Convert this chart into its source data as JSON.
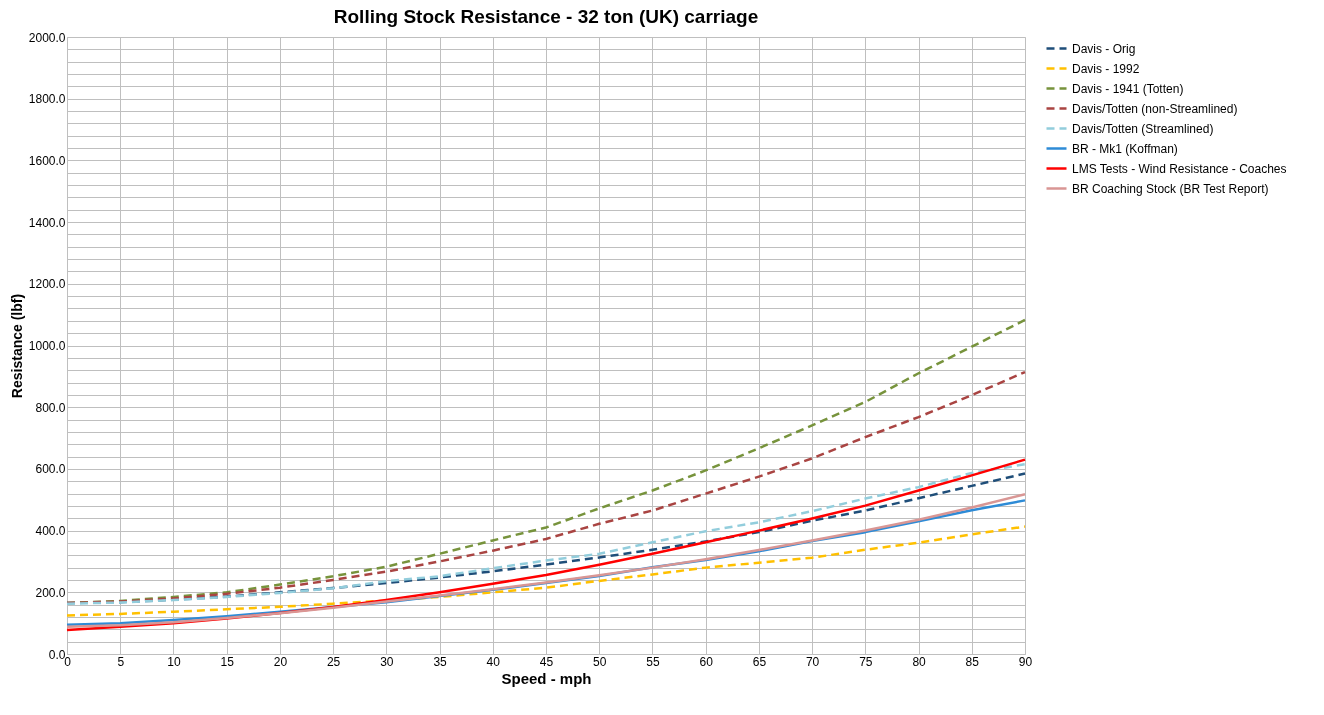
{
  "chart_data": {
    "type": "line",
    "title": "Rolling Stock Resistance - 32 ton (UK) carriage",
    "xlabel": "Speed - mph",
    "ylabel": "Resistance (lbf)",
    "x": [
      0,
      5,
      10,
      15,
      20,
      25,
      30,
      35,
      40,
      45,
      50,
      55,
      60,
      65,
      70,
      75,
      80,
      85,
      90
    ],
    "series": [
      {
        "name": "Davis - Orig",
        "color": "#1f4e79",
        "line_style": "dashed",
        "values": [
          165,
          168,
          176,
          186,
          200,
          214,
          230,
          248,
          268,
          290,
          313,
          338,
          365,
          395,
          432,
          465,
          505,
          545,
          585
        ]
      },
      {
        "name": "Davis - 1992",
        "color": "#ffc000",
        "line_style": "dashed",
        "values": [
          125,
          130,
          137,
          145,
          153,
          163,
          173,
          185,
          200,
          215,
          237,
          258,
          280,
          296,
          312,
          338,
          361,
          388,
          413
        ]
      },
      {
        "name": "Davis - 1941 (Totten)",
        "color": "#77933c",
        "line_style": "dashed",
        "values": [
          165,
          172,
          185,
          200,
          225,
          252,
          283,
          325,
          368,
          410,
          472,
          530,
          595,
          667,
          741,
          817,
          910,
          996,
          1083
        ]
      },
      {
        "name": "Davis/Totten (non-Streamlined)",
        "color": "#a94442",
        "line_style": "dashed",
        "values": [
          165,
          170,
          180,
          195,
          215,
          240,
          267,
          300,
          335,
          373,
          422,
          465,
          520,
          575,
          634,
          703,
          768,
          839,
          914
        ]
      },
      {
        "name": "Davis/Totten (Streamlined)",
        "color": "#92cddc",
        "line_style": "dashed",
        "values": [
          163,
          167,
          175,
          185,
          198,
          213,
          236,
          252,
          278,
          303,
          325,
          362,
          398,
          427,
          463,
          504,
          541,
          587,
          615
        ]
      },
      {
        "name": "BR - Mk1 (Koffman)",
        "color": "#2e8bd6",
        "line_style": "solid",
        "values": [
          95,
          100,
          110,
          122,
          137,
          152,
          168,
          188,
          208,
          230,
          253,
          281,
          305,
          333,
          366,
          395,
          430,
          466,
          498
        ]
      },
      {
        "name": "LMS Tests - Wind Resistance - Coaches",
        "color": "#ff0000",
        "line_style": "solid",
        "values": [
          78,
          88,
          100,
          115,
          133,
          152,
          175,
          200,
          228,
          256,
          289,
          325,
          362,
          400,
          439,
          481,
          530,
          579,
          630
        ]
      },
      {
        "name": "BR Coaching Stock (BR Test Report)",
        "color": "#d99694",
        "line_style": "solid",
        "values": [
          88,
          93,
          103,
          117,
          132,
          150,
          170,
          190,
          210,
          232,
          255,
          280,
          307,
          337,
          368,
          400,
          435,
          475,
          518
        ]
      }
    ],
    "xlim": [
      0,
      90
    ],
    "xticks": [
      0,
      5,
      10,
      15,
      20,
      25,
      30,
      35,
      40,
      45,
      50,
      55,
      60,
      65,
      70,
      75,
      80,
      85,
      90
    ],
    "ylim": [
      0,
      2000
    ],
    "yticks": [
      {
        "value": 0,
        "label": "0.0"
      },
      {
        "value": 40,
        "label": null
      },
      {
        "value": 80,
        "label": null
      },
      {
        "value": 120,
        "label": null
      },
      {
        "value": 160,
        "label": null
      },
      {
        "value": 200,
        "label": "200.0"
      },
      {
        "value": 240,
        "label": null
      },
      {
        "value": 280,
        "label": null
      },
      {
        "value": 320,
        "label": null
      },
      {
        "value": 360,
        "label": null
      },
      {
        "value": 400,
        "label": "400.0"
      },
      {
        "value": 440,
        "label": null
      },
      {
        "value": 480,
        "label": null
      },
      {
        "value": 520,
        "label": null
      },
      {
        "value": 560,
        "label": null
      },
      {
        "value": 600,
        "label": "600.0"
      },
      {
        "value": 640,
        "label": null
      },
      {
        "value": 680,
        "label": null
      },
      {
        "value": 720,
        "label": null
      },
      {
        "value": 760,
        "label": null
      },
      {
        "value": 800,
        "label": "800.0"
      },
      {
        "value": 840,
        "label": null
      },
      {
        "value": 880,
        "label": null
      },
      {
        "value": 920,
        "label": null
      },
      {
        "value": 960,
        "label": null
      },
      {
        "value": 1000,
        "label": "1000.0"
      },
      {
        "value": 1040,
        "label": null
      },
      {
        "value": 1080,
        "label": null
      },
      {
        "value": 1120,
        "label": null
      },
      {
        "value": 1160,
        "label": null
      },
      {
        "value": 1200,
        "label": "1200.0"
      },
      {
        "value": 1240,
        "label": null
      },
      {
        "value": 1280,
        "label": null
      },
      {
        "value": 1320,
        "label": null
      },
      {
        "value": 1360,
        "label": null
      },
      {
        "value": 1400,
        "label": "1400.0"
      },
      {
        "value": 1440,
        "label": null
      },
      {
        "value": 1480,
        "label": null
      },
      {
        "value": 1520,
        "label": null
      },
      {
        "value": 1560,
        "label": null
      },
      {
        "value": 1600,
        "label": "1600.0"
      },
      {
        "value": 1640,
        "label": null
      },
      {
        "value": 1680,
        "label": null
      },
      {
        "value": 1720,
        "label": null
      },
      {
        "value": 1760,
        "label": null
      },
      {
        "value": 1800,
        "label": "1800.0"
      },
      {
        "value": 1840,
        "label": null
      },
      {
        "value": 1880,
        "label": null
      },
      {
        "value": 1920,
        "label": null
      },
      {
        "value": 1960,
        "label": null
      },
      {
        "value": 2000,
        "label": "2000.0"
      }
    ],
    "grid": true,
    "legend": "right"
  }
}
